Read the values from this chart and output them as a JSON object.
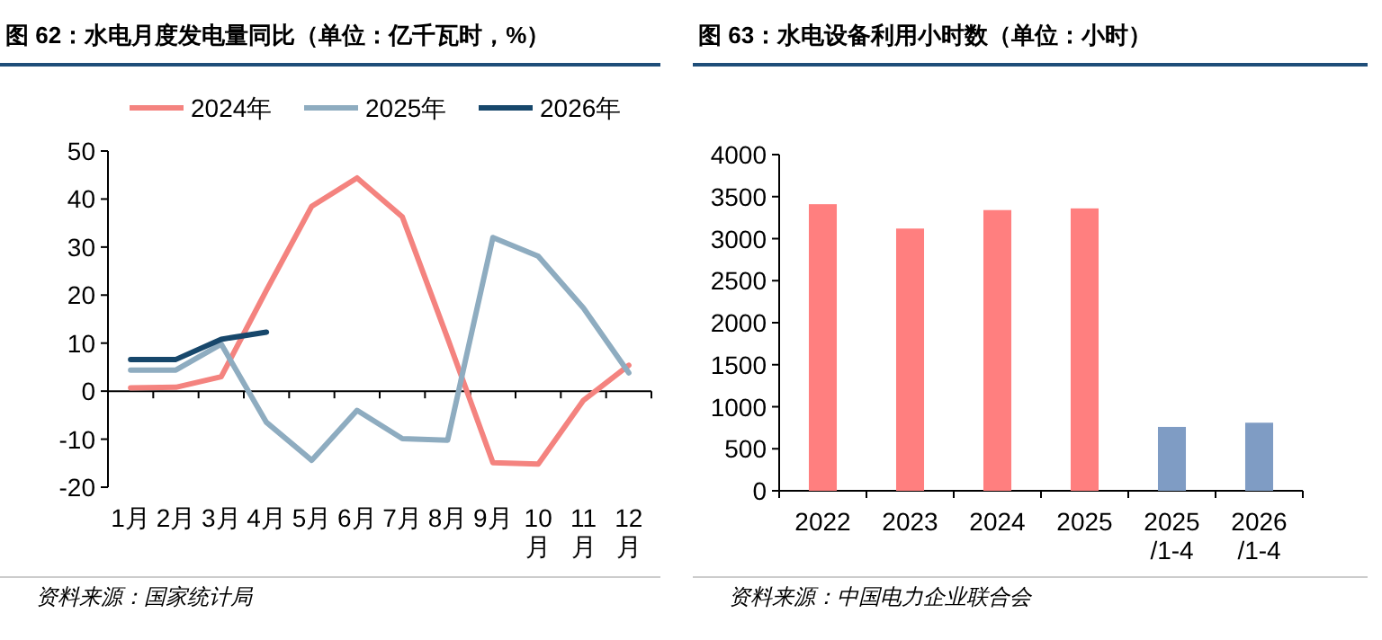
{
  "chart_data": [
    {
      "type": "line",
      "title": "图 62：水电月度发电量同比（单位：亿千瓦时，%）",
      "categories": [
        "1月",
        "2月",
        "3月",
        "4月",
        "5月",
        "6月",
        "7月",
        "8月",
        "9月",
        "10月",
        "11月",
        "12月"
      ],
      "series": [
        {
          "name": "2024年",
          "color": "#f4837f",
          "values": [
            0.7,
            0.8,
            3,
            21,
            38.5,
            44.4,
            36.3,
            11,
            -14.9,
            -15.2,
            -1.9,
            5.4
          ]
        },
        {
          "name": "2025年",
          "color": "#8eacc0",
          "values": [
            4.4,
            4.4,
            9.8,
            -6.5,
            -14.4,
            -4,
            -9.9,
            -10.2,
            32,
            28.1,
            17.3,
            3.8
          ]
        },
        {
          "name": "2026年",
          "color": "#17476b",
          "values": [
            6.6,
            6.6,
            10.8,
            12.3,
            null,
            null,
            null,
            null,
            null,
            null,
            null,
            null
          ]
        }
      ],
      "ylim": [
        -20,
        50
      ],
      "yticks": [
        -20,
        -10,
        0,
        10,
        20,
        30,
        40,
        50
      ],
      "legend": "top",
      "line_style": "solid",
      "annotations": [
        "资料来源：国家统计局"
      ]
    },
    {
      "type": "bar",
      "title": "图 63：水电设备利用小时数（单位：小时）",
      "categories": [
        "2022",
        "2023",
        "2024",
        "2025",
        "2025/1-4",
        "2026/1-4"
      ],
      "values": [
        3410,
        3120,
        3340,
        3360,
        760,
        810
      ],
      "colors": [
        "#ff7f7f",
        "#ff7f7f",
        "#ff7f7f",
        "#ff7f7f",
        "#7f9cc4",
        "#7f9cc4"
      ],
      "ylim": [
        0,
        4000
      ],
      "yticks": [
        0,
        500,
        1000,
        1500,
        2000,
        2500,
        3000,
        3500,
        4000
      ],
      "annotations": [
        "资料来源：中国电力企业联合会"
      ]
    }
  ]
}
